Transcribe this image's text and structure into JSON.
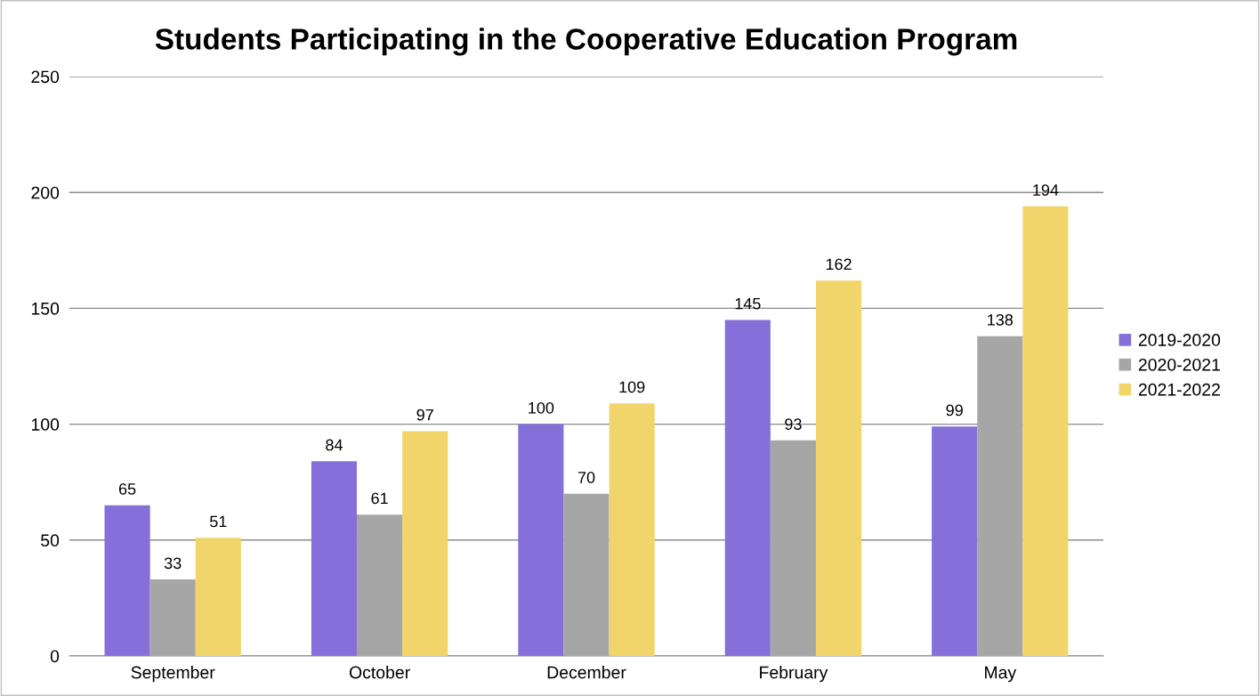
{
  "chart_data": {
    "type": "bar",
    "title": "Students Participating in the Cooperative Education Program",
    "categories": [
      "September",
      "October",
      "December",
      "February",
      "May"
    ],
    "series": [
      {
        "name": "2019-2020",
        "color": "#8470d8",
        "values": [
          65,
          84,
          100,
          145,
          99
        ]
      },
      {
        "name": "2020-2021",
        "color": "#a6a6a6",
        "values": [
          33,
          61,
          70,
          93,
          138
        ]
      },
      {
        "name": "2021-2022",
        "color": "#f1d56b",
        "values": [
          51,
          97,
          109,
          162,
          194
        ]
      }
    ],
    "ylim": [
      0,
      250
    ],
    "yticks": [
      0,
      50,
      100,
      150,
      200,
      250
    ],
    "grid": "y",
    "legend": "right",
    "data_labels": true
  }
}
